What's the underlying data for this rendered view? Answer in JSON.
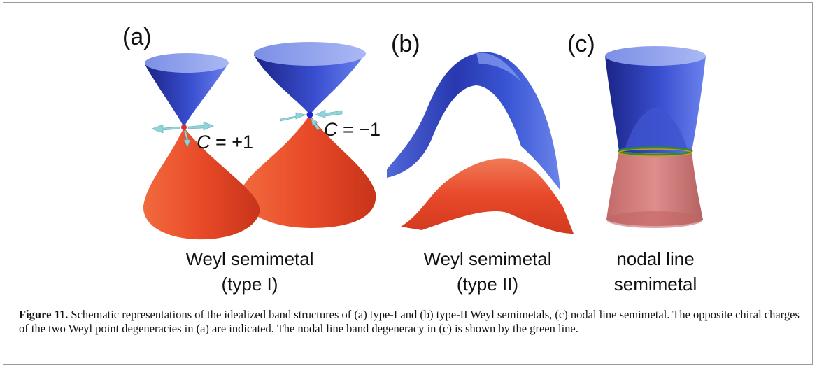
{
  "panels": {
    "a": {
      "letter": "(a)",
      "caption_line1": "Weyl semimetal",
      "caption_line2": "(type I)",
      "charge_left": {
        "symbol": "C",
        "value": " = +1"
      },
      "charge_right": {
        "symbol": "C",
        "value": " = −1"
      }
    },
    "b": {
      "letter": "(b)",
      "caption_line1": "Weyl semimetal",
      "caption_line2": "(type II)"
    },
    "c": {
      "letter": "(c)",
      "caption_line1": "nodal line",
      "caption_line2": "semimetal"
    }
  },
  "figure_caption": {
    "label": "Figure 11.",
    "text": " Schematic representations of the idealized band structures of (a) type-I and (b) type-II Weyl semimetals, (c) nodal line semimetal. The opposite chiral charges of the two Weyl point degeneracies in (a) are indicated. The nodal line band degeneracy in (c) is shown by the green line."
  },
  "colors": {
    "conduction_band": "#2f3fb8",
    "valence_band": "#e84a28",
    "weyl_point_left": "#d83030",
    "weyl_point_right": "#1a2ad0",
    "arrows": "#8fd4d8",
    "nodal_line": "#2e8b2e"
  }
}
